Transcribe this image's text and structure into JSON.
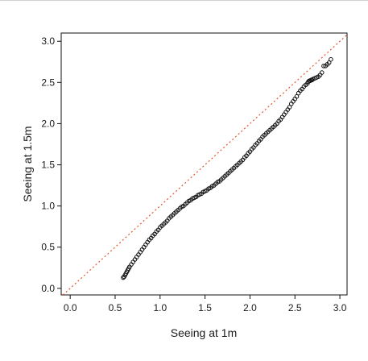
{
  "chart_data": {
    "type": "scatter",
    "xlabel": "Seeing at 1m",
    "ylabel": "Seeing at 1.5m",
    "xlim": [
      -0.1,
      3.08
    ],
    "ylim": [
      -0.08,
      3.1
    ],
    "xticks": [
      "0.0",
      "0.5",
      "1.0",
      "1.5",
      "2.0",
      "2.5",
      "3.0"
    ],
    "yticks": [
      "0.0",
      "0.5",
      "1.0",
      "1.5",
      "2.0",
      "2.5",
      "3.0"
    ],
    "grid": false,
    "legend": "none",
    "reference_line": {
      "slope": 1,
      "intercept": 0,
      "style": "dotted",
      "color": "#e0562a"
    },
    "series": [
      {
        "marker": "open-circle",
        "color": "#111111",
        "x": [
          0.59,
          0.6,
          0.61,
          0.62,
          0.63,
          0.64,
          0.65,
          0.66,
          0.68,
          0.7,
          0.72,
          0.74,
          0.76,
          0.78,
          0.8,
          0.82,
          0.84,
          0.86,
          0.88,
          0.9,
          0.92,
          0.94,
          0.96,
          0.98,
          1.0,
          1.02,
          1.04,
          1.06,
          1.08,
          1.1,
          1.12,
          1.14,
          1.16,
          1.18,
          1.2,
          1.22,
          1.24,
          1.26,
          1.28,
          1.3,
          1.32,
          1.34,
          1.36,
          1.38,
          1.4,
          1.42,
          1.44,
          1.46,
          1.48,
          1.5,
          1.52,
          1.54,
          1.56,
          1.58,
          1.6,
          1.62,
          1.64,
          1.66,
          1.68,
          1.7,
          1.72,
          1.74,
          1.76,
          1.78,
          1.8,
          1.82,
          1.84,
          1.86,
          1.88,
          1.9,
          1.92,
          1.94,
          1.96,
          1.98,
          2.0,
          2.02,
          2.04,
          2.06,
          2.08,
          2.1,
          2.12,
          2.14,
          2.16,
          2.18,
          2.2,
          2.22,
          2.24,
          2.26,
          2.28,
          2.3,
          2.32,
          2.34,
          2.36,
          2.38,
          2.4,
          2.42,
          2.44,
          2.46,
          2.48,
          2.5,
          2.52,
          2.54,
          2.56,
          2.58,
          2.6,
          2.62,
          2.64,
          2.65,
          2.66,
          2.67,
          2.68,
          2.69,
          2.7,
          2.72,
          2.74,
          2.76,
          2.78,
          2.8,
          2.82,
          2.84,
          2.86,
          2.88,
          2.9
        ],
        "y": [
          0.13,
          0.14,
          0.16,
          0.18,
          0.2,
          0.22,
          0.24,
          0.26,
          0.29,
          0.32,
          0.35,
          0.38,
          0.41,
          0.44,
          0.47,
          0.5,
          0.53,
          0.56,
          0.59,
          0.61,
          0.64,
          0.66,
          0.69,
          0.71,
          0.74,
          0.76,
          0.78,
          0.8,
          0.82,
          0.85,
          0.87,
          0.89,
          0.91,
          0.93,
          0.95,
          0.97,
          0.99,
          1.0,
          1.02,
          1.04,
          1.06,
          1.07,
          1.09,
          1.1,
          1.11,
          1.13,
          1.14,
          1.15,
          1.17,
          1.18,
          1.19,
          1.21,
          1.22,
          1.24,
          1.25,
          1.27,
          1.29,
          1.3,
          1.32,
          1.34,
          1.36,
          1.38,
          1.4,
          1.42,
          1.44,
          1.46,
          1.48,
          1.5,
          1.52,
          1.54,
          1.56,
          1.59,
          1.61,
          1.64,
          1.66,
          1.69,
          1.71,
          1.74,
          1.76,
          1.79,
          1.81,
          1.84,
          1.86,
          1.88,
          1.9,
          1.92,
          1.94,
          1.96,
          1.98,
          2.0,
          2.03,
          2.05,
          2.08,
          2.11,
          2.14,
          2.17,
          2.2,
          2.24,
          2.27,
          2.3,
          2.33,
          2.37,
          2.4,
          2.42,
          2.45,
          2.47,
          2.49,
          2.51,
          2.52,
          2.52,
          2.53,
          2.53,
          2.54,
          2.55,
          2.56,
          2.57,
          2.59,
          2.62,
          2.7,
          2.7,
          2.72,
          2.74,
          2.78
        ]
      }
    ]
  }
}
